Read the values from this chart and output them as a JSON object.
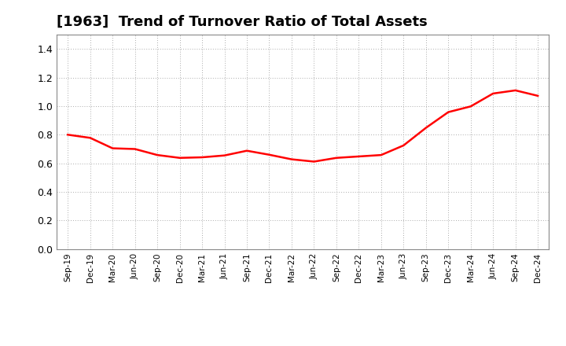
{
  "title": "[1963]  Trend of Turnover Ratio of Total Assets",
  "title_fontsize": 13,
  "line_color": "#FF0000",
  "line_width": 1.8,
  "background_color": "#FFFFFF",
  "plot_bg_color": "#FFFFFF",
  "grid_color": "#AAAAAA",
  "ylim": [
    0.0,
    1.5
  ],
  "yticks": [
    0.0,
    0.2,
    0.4,
    0.6,
    0.8,
    1.0,
    1.2,
    1.4
  ],
  "values": [
    0.8,
    0.778,
    0.705,
    0.7,
    0.658,
    0.638,
    0.642,
    0.655,
    0.688,
    0.66,
    0.628,
    0.612,
    0.638,
    0.648,
    0.658,
    0.725,
    0.848,
    0.958,
    0.998,
    1.088,
    1.11,
    1.072
  ],
  "tick_labels": [
    "Sep-19",
    "Dec-19",
    "Mar-20",
    "Jun-20",
    "Sep-20",
    "Dec-20",
    "Mar-21",
    "Jun-21",
    "Sep-21",
    "Dec-21",
    "Mar-22",
    "Jun-22",
    "Sep-22",
    "Dec-22",
    "Mar-23",
    "Jun-23",
    "Sep-23",
    "Dec-23",
    "Mar-24",
    "Jun-24",
    "Sep-24",
    "Dec-24"
  ]
}
